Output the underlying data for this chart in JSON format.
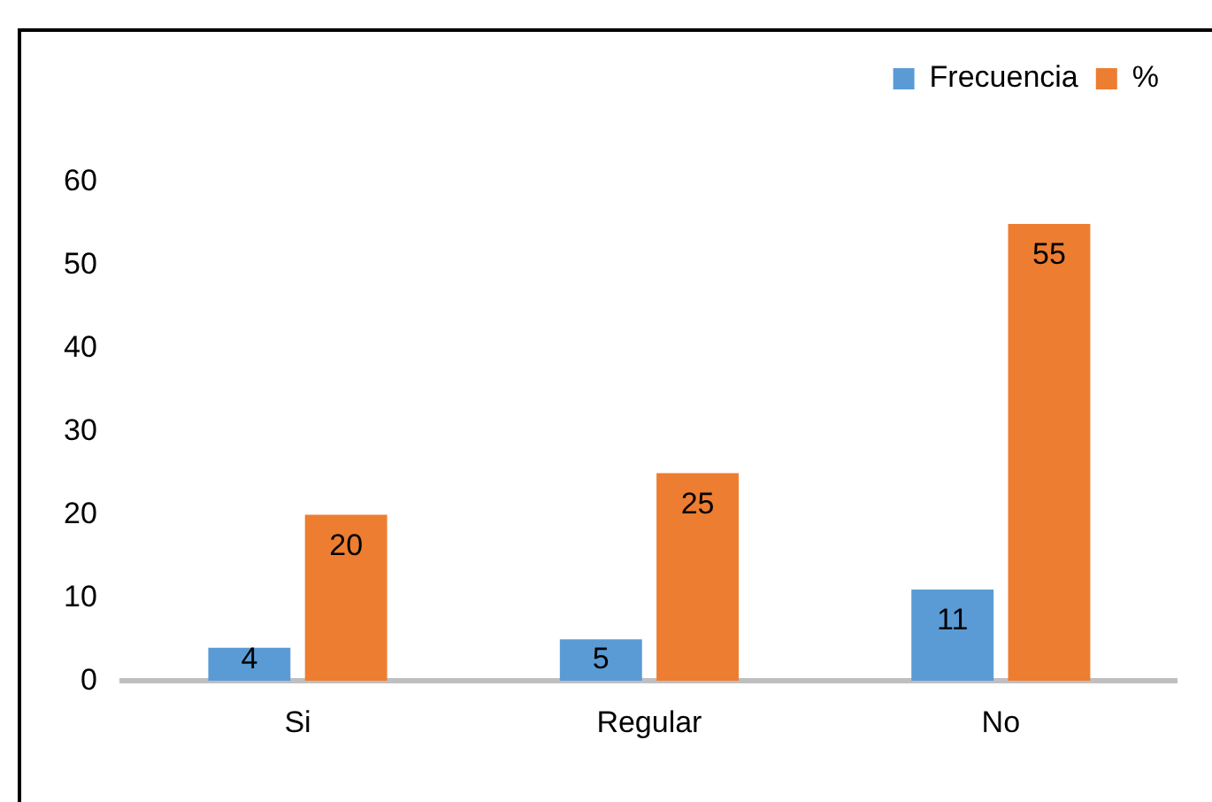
{
  "chart_data": {
    "type": "bar",
    "categories": [
      "Si",
      "Regular",
      "No"
    ],
    "series": [
      {
        "name": "Frecuencia",
        "color": "#5b9bd5",
        "values": [
          4,
          5,
          11
        ]
      },
      {
        "name": "%",
        "color": "#ed7d31",
        "values": [
          20,
          25,
          55
        ]
      }
    ],
    "ylim": [
      0,
      60
    ],
    "yticks": [
      0,
      10,
      20,
      30,
      40,
      50,
      60
    ],
    "grid": false,
    "legend": "top right",
    "data_labels": true
  }
}
